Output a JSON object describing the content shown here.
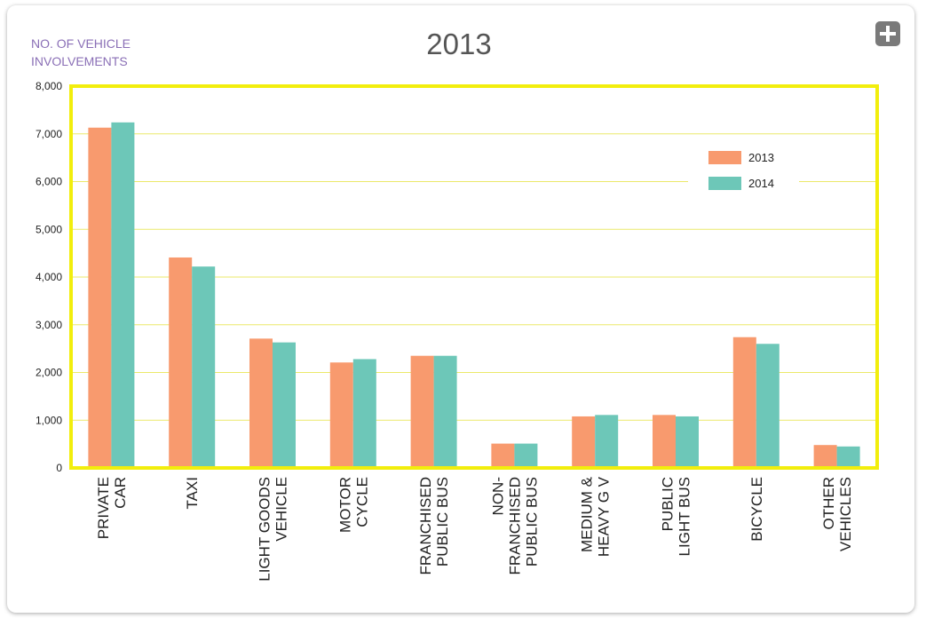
{
  "chart_data": {
    "type": "bar",
    "title": "2013",
    "ylabel_lines": [
      "NO. OF VEHICLE",
      "INVOLVEMENTS"
    ],
    "xlabel": "",
    "ylim": [
      0,
      8000
    ],
    "yticks": [
      0,
      1000,
      2000,
      3000,
      4000,
      5000,
      6000,
      7000,
      8000
    ],
    "ytick_labels": [
      "0",
      "1,000",
      "2,000",
      "3,000",
      "4,000",
      "5,000",
      "6,000",
      "7,000",
      "8,000"
    ],
    "categories": [
      [
        "PRIVATE",
        "CAR"
      ],
      [
        "TAXI"
      ],
      [
        "LIGHT GOODS",
        "VEHICLE"
      ],
      [
        "MOTOR",
        "CYCLE"
      ],
      [
        "FRANCHISED",
        "PUBLIC BUS"
      ],
      [
        "NON-",
        "FRANCHISED",
        "PUBLIC BUS"
      ],
      [
        "MEDIUM &",
        "HEAVY G V"
      ],
      [
        "PUBLIC",
        "LIGHT BUS"
      ],
      [
        "BICYCLE"
      ],
      [
        "OTHER",
        "VEHICLES"
      ]
    ],
    "series": [
      {
        "name": "2013",
        "color": "#f89a6e",
        "values": [
          7130,
          4410,
          2710,
          2210,
          2350,
          510,
          1080,
          1110,
          2740,
          480
        ]
      },
      {
        "name": "2014",
        "color": "#6dc7b8",
        "values": [
          7240,
          4220,
          2630,
          2280,
          2350,
          510,
          1110,
          1080,
          2600,
          450
        ]
      }
    ],
    "grid": true,
    "legend_position": "top-right",
    "colors": {
      "frame": "#f2ee0c",
      "gridline": "#ebe96a",
      "ylabel": "#8a6fb6",
      "title": "#555555",
      "text": "#222222"
    }
  },
  "ui": {
    "expand_icon": "plus-icon"
  }
}
